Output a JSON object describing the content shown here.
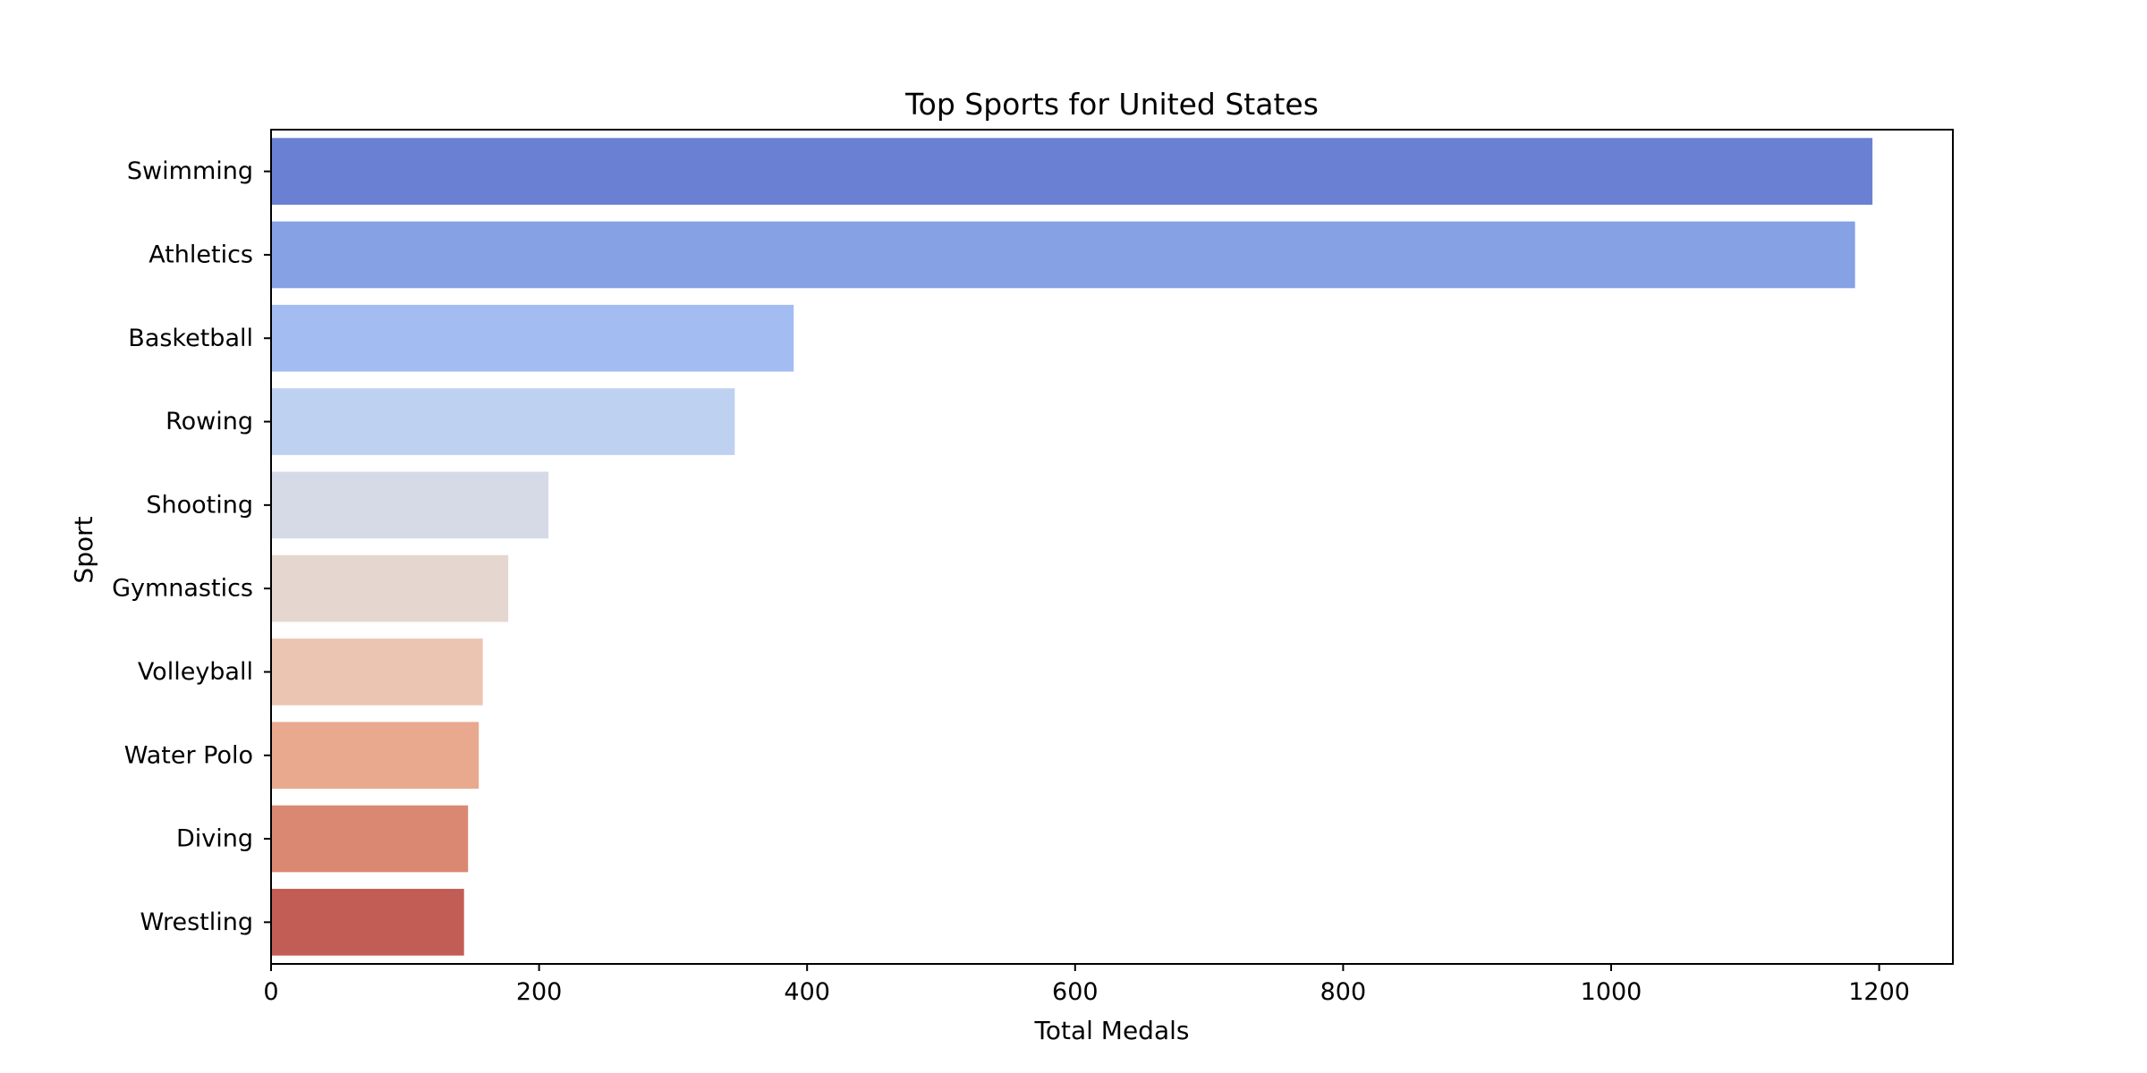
{
  "chart_data": {
    "type": "bar",
    "orientation": "horizontal",
    "title": "Top Sports for United States",
    "xlabel": "Total Medals",
    "ylabel": "Sport",
    "xlim": [
      0,
      1255
    ],
    "xticks": [
      0,
      200,
      400,
      600,
      800,
      1000,
      1200
    ],
    "grid": false,
    "legend": "none",
    "categories": [
      "Swimming",
      "Athletics",
      "Basketball",
      "Rowing",
      "Shooting",
      "Gymnastics",
      "Volleyball",
      "Water Polo",
      "Diving",
      "Wrestling"
    ],
    "values": [
      1195,
      1182,
      390,
      346,
      207,
      177,
      158,
      155,
      147,
      144
    ],
    "colors": [
      "#6a80d2",
      "#86a1e4",
      "#a3bcf2",
      "#bfd1f1",
      "#d5dae6",
      "#e5d7cf",
      "#ecc5b2",
      "#e8a98e",
      "#da8872",
      "#c25d55"
    ]
  }
}
